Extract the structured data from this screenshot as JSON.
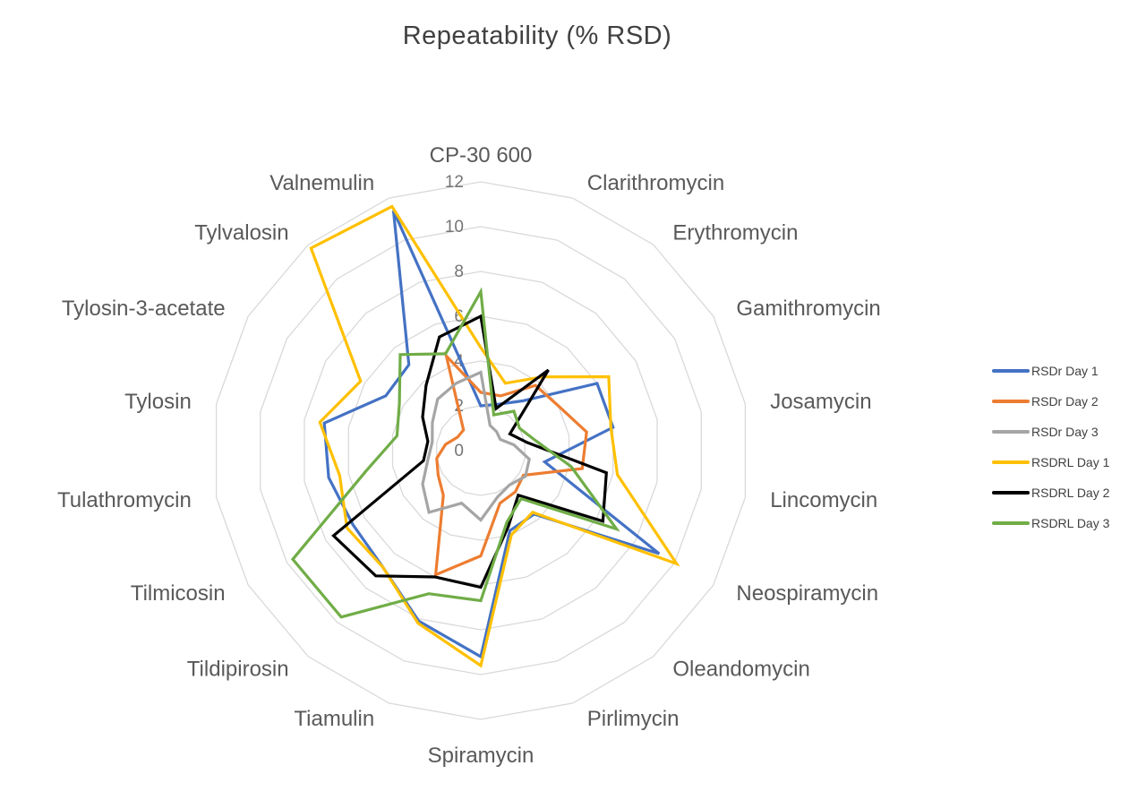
{
  "title": "Repeatability (% RSD)",
  "colors": {
    "grid": "#D9D9D9",
    "category_labels": "#595959",
    "tick_labels": "#757575",
    "title_text": "#404040"
  },
  "chart_data": {
    "type": "radar",
    "title": "Repeatability (% RSD)",
    "grid": "polygonal concentric rings, no radial spokes",
    "legend_position": "right",
    "radial_axis": {
      "min": 0,
      "max": 12,
      "tick_interval": 2,
      "tick_labels": [
        "0",
        "2",
        "4",
        "6",
        "8",
        "10",
        "12"
      ]
    },
    "categories": [
      "CP-30 600",
      "Clarithromycin",
      "Erythromycin",
      "Gamithromycin",
      "Josamycin",
      "Lincomycin",
      "Neospiramycin",
      "Oleandomycin",
      "Pirlimycin",
      "Spiramycin",
      "Tiamulin",
      "Tildipirosin",
      "Tilmicosin",
      "Tulathromycin",
      "Tylosin",
      "Tylosin-3-acetate",
      "Tylvalosin",
      "Valnemulin"
    ],
    "series": [
      {
        "name": "RSDr Day 1",
        "color": "#4472C4",
        "values": [
          2.0,
          2.2,
          2.9,
          6.0,
          6.0,
          2.9,
          9.2,
          3.7,
          3.8,
          9.2,
          8.1,
          6.8,
          6.6,
          6.9,
          7.1,
          4.9,
          5.0,
          11.4
        ]
      },
      {
        "name": "RSDr Day 2",
        "color": "#ED7D31",
        "values": [
          2.6,
          2.6,
          3.8,
          4.0,
          4.8,
          4.6,
          2.2,
          2.4,
          2.5,
          4.7,
          5.9,
          2.6,
          2.2,
          2.0,
          1.6,
          1.2,
          1.2,
          4.5
        ]
      },
      {
        "name": "RSDr Day 3",
        "color": "#A5A5A5",
        "values": [
          3.5,
          1.2,
          1.1,
          1.0,
          1.5,
          2.2,
          2.3,
          2.0,
          2.2,
          3.1,
          2.5,
          3.6,
          3.0,
          2.4,
          2.2,
          2.5,
          3.0,
          3.2
        ]
      },
      {
        "name": "RSDRL Day 1",
        "color": "#FFC000",
        "values": [
          4.6,
          3.2,
          4.3,
          6.6,
          5.9,
          6.2,
          10.1,
          3.6,
          4.0,
          9.6,
          8.2,
          6.8,
          6.9,
          6.4,
          7.3,
          6.2,
          11.8,
          11.6
        ]
      },
      {
        "name": "RSDRL Day 2",
        "color": "#000000",
        "values": [
          6.0,
          2.0,
          4.7,
          1.5,
          2.1,
          5.7,
          6.3,
          2.6,
          3.6,
          6.1,
          6.0,
          7.3,
          7.6,
          2.6,
          2.4,
          3.0,
          3.8,
          5.4
        ]
      },
      {
        "name": "RSDRL Day 3",
        "color": "#70AD47",
        "values": [
          7.1,
          1.7,
          2.3,
          2.0,
          2.5,
          4.1,
          7.0,
          2.8,
          3.4,
          6.7,
          6.8,
          9.7,
          9.7,
          5.2,
          3.8,
          4.2,
          5.6,
          4.6
        ]
      }
    ]
  }
}
